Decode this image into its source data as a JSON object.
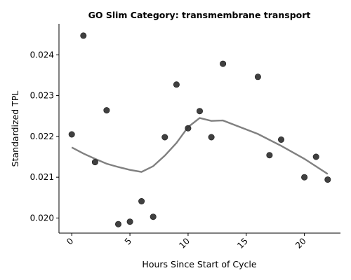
{
  "chart_data": {
    "type": "scatter",
    "title": "GO Slim Category: transmembrane transport",
    "xlabel": "Hours Since Start of Cycle",
    "ylabel": "Standardized TPL",
    "xlim": [
      -1.1,
      23.1
    ],
    "ylim": [
      0.01963,
      0.02476
    ],
    "xticks": [
      0,
      5,
      10,
      15,
      20
    ],
    "xtick_labels": [
      "0",
      "5",
      "10",
      "15",
      "20"
    ],
    "yticks": [
      0.02,
      0.021,
      0.022,
      0.023,
      0.024
    ],
    "ytick_labels": [
      "0.020",
      "0.021",
      "0.022",
      "0.023",
      "0.024"
    ],
    "grid": false,
    "point_color": "#303030",
    "trend_color": "#808080",
    "points": [
      {
        "x": 0,
        "y": 0.02205
      },
      {
        "x": 1,
        "y": 0.02447
      },
      {
        "x": 2,
        "y": 0.02137
      },
      {
        "x": 3,
        "y": 0.02264
      },
      {
        "x": 4,
        "y": 0.01985
      },
      {
        "x": 5,
        "y": 0.01991
      },
      {
        "x": 6,
        "y": 0.02041
      },
      {
        "x": 7,
        "y": 0.02003
      },
      {
        "x": 8,
        "y": 0.02198
      },
      {
        "x": 9,
        "y": 0.02327
      },
      {
        "x": 10,
        "y": 0.0222
      },
      {
        "x": 11,
        "y": 0.02262
      },
      {
        "x": 12,
        "y": 0.02198
      },
      {
        "x": 13,
        "y": 0.02378
      },
      {
        "x": 16,
        "y": 0.02346
      },
      {
        "x": 17,
        "y": 0.02154
      },
      {
        "x": 18,
        "y": 0.02192
      },
      {
        "x": 20,
        "y": 0.021
      },
      {
        "x": 21,
        "y": 0.0215
      },
      {
        "x": 22,
        "y": 0.02094
      }
    ],
    "trend": [
      {
        "x": 0,
        "y": 0.02173
      },
      {
        "x": 1,
        "y": 0.02158
      },
      {
        "x": 2,
        "y": 0.02145
      },
      {
        "x": 3,
        "y": 0.02133
      },
      {
        "x": 4,
        "y": 0.02125
      },
      {
        "x": 5,
        "y": 0.02118
      },
      {
        "x": 6,
        "y": 0.02113
      },
      {
        "x": 7,
        "y": 0.02127
      },
      {
        "x": 8,
        "y": 0.02153
      },
      {
        "x": 9,
        "y": 0.02184
      },
      {
        "x": 10,
        "y": 0.02223
      },
      {
        "x": 11,
        "y": 0.02245
      },
      {
        "x": 12,
        "y": 0.02238
      },
      {
        "x": 13,
        "y": 0.02239
      },
      {
        "x": 16,
        "y": 0.02206
      },
      {
        "x": 18,
        "y": 0.02177
      },
      {
        "x": 20,
        "y": 0.02145
      },
      {
        "x": 22,
        "y": 0.02108
      }
    ]
  }
}
